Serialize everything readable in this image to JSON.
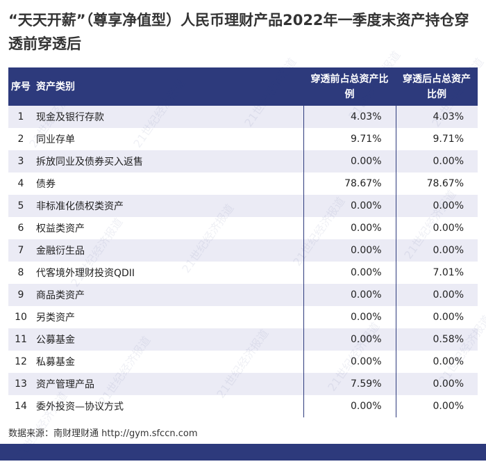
{
  "header": {
    "title": "“天天开薪”（尊享净值型）人民币理财产品2022年一季度末资产持仓穿透前穿透后"
  },
  "table": {
    "columns": [
      "序号",
      "资产类别",
      "穿透前占总资产比例",
      "穿透后占总资产比例"
    ],
    "rows": [
      [
        "1",
        "现金及银行存款",
        "4.03%",
        "4.03%"
      ],
      [
        "2",
        "同业存单",
        "9.71%",
        "9.71%"
      ],
      [
        "3",
        "拆放同业及债券买入返售",
        "0.00%",
        "0.00%"
      ],
      [
        "4",
        "债券",
        "78.67%",
        "78.67%"
      ],
      [
        "5",
        "非标准化债权类资产",
        "0.00%",
        "0.00%"
      ],
      [
        "6",
        "权益类资产",
        "0.00%",
        "0.00%"
      ],
      [
        "7",
        "金融衍生品",
        "0.00%",
        "0.00%"
      ],
      [
        "8",
        "代客境外理财投资QDII",
        "0.00%",
        "7.01%"
      ],
      [
        "9",
        "商品类资产",
        "0.00%",
        "0.00%"
      ],
      [
        "10",
        "另类资产",
        "0.00%",
        "0.00%"
      ],
      [
        "11",
        "公募基金",
        "0.00%",
        "0.58%"
      ],
      [
        "12",
        "私募基金",
        "0.00%",
        "0.00%"
      ],
      [
        "13",
        "资产管理产品",
        "7.59%",
        "0.00%"
      ],
      [
        "14",
        "委外投资—协议方式",
        "0.00%",
        "0.00%"
      ]
    ]
  },
  "footer": {
    "source": "数据来源：南财理财通 http://gym.sfccn.com"
  },
  "watermark": "21世纪经济报道"
}
